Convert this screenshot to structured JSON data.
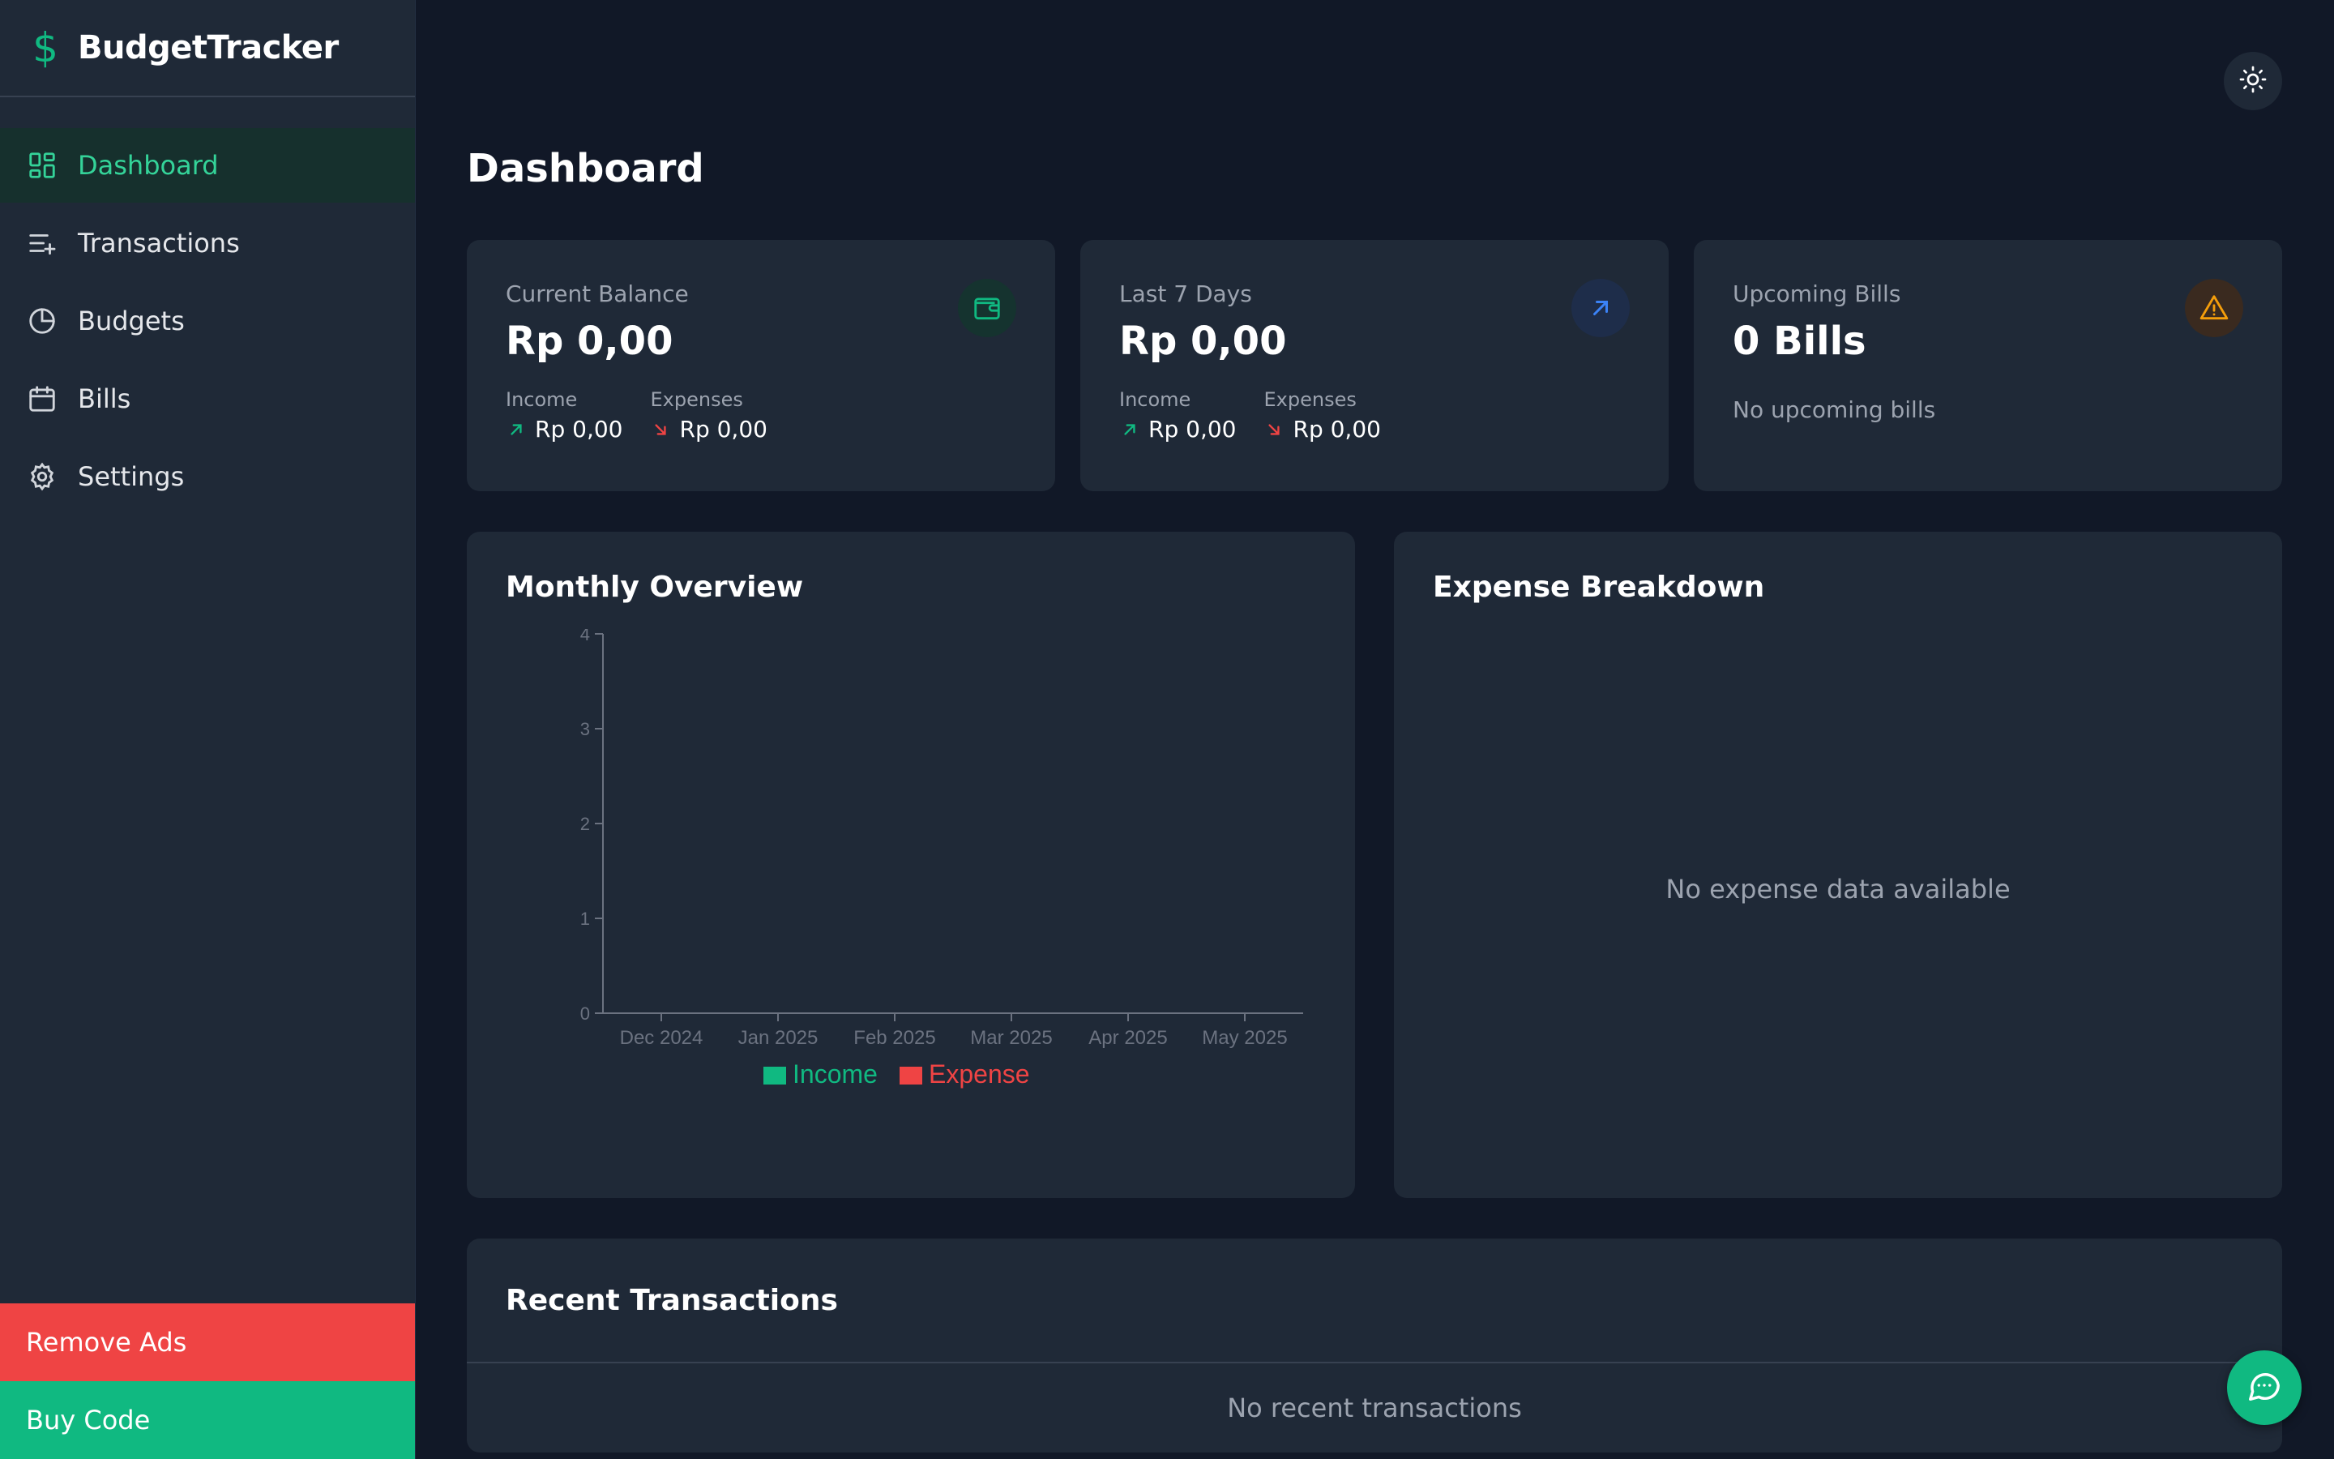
{
  "app": {
    "name": "BudgetTracker"
  },
  "sidebar": {
    "items": [
      {
        "label": "Dashboard",
        "icon": "dashboard-icon",
        "active": true
      },
      {
        "label": "Transactions",
        "icon": "transactions-icon"
      },
      {
        "label": "Budgets",
        "icon": "pie-chart-icon"
      },
      {
        "label": "Bills",
        "icon": "calendar-icon"
      },
      {
        "label": "Settings",
        "icon": "gear-icon"
      }
    ],
    "remove_ads": "Remove Ads",
    "buy_code": "Buy Code"
  },
  "page": {
    "title": "Dashboard"
  },
  "cards": {
    "balance": {
      "label": "Current Balance",
      "value": "Rp 0,00",
      "income_label": "Income",
      "income_value": "Rp 0,00",
      "expense_label": "Expenses",
      "expense_value": "Rp 0,00",
      "icon": "wallet-icon"
    },
    "week": {
      "label": "Last 7 Days",
      "value": "Rp 0,00",
      "income_label": "Income",
      "income_value": "Rp 0,00",
      "expense_label": "Expenses",
      "expense_value": "Rp 0,00",
      "icon": "arrow-up-right-icon"
    },
    "bills": {
      "label": "Upcoming Bills",
      "value": "0 Bills",
      "note": "No upcoming bills",
      "icon": "warning-icon"
    }
  },
  "overview": {
    "title": "Monthly Overview"
  },
  "chart_data": {
    "type": "bar",
    "categories": [
      "Dec 2024",
      "Jan 2025",
      "Feb 2025",
      "Mar 2025",
      "Apr 2025",
      "May 2025"
    ],
    "series": [
      {
        "name": "Income",
        "values": [
          0,
          0,
          0,
          0,
          0,
          0
        ],
        "color": "#10b981"
      },
      {
        "name": "Expense",
        "values": [
          0,
          0,
          0,
          0,
          0,
          0
        ],
        "color": "#ef4444"
      }
    ],
    "yticks": [
      "0",
      "1",
      "2",
      "3",
      "4"
    ],
    "ylim": [
      0,
      4
    ],
    "legend": "bottom-center",
    "grid": false
  },
  "breakdown": {
    "title": "Expense Breakdown",
    "empty": "No expense data available"
  },
  "recent": {
    "title": "Recent Transactions",
    "empty": "No recent transactions"
  },
  "colors": {
    "accent": "#10b981",
    "danger": "#ef4444",
    "background": "#111827",
    "card": "#1f2937"
  }
}
